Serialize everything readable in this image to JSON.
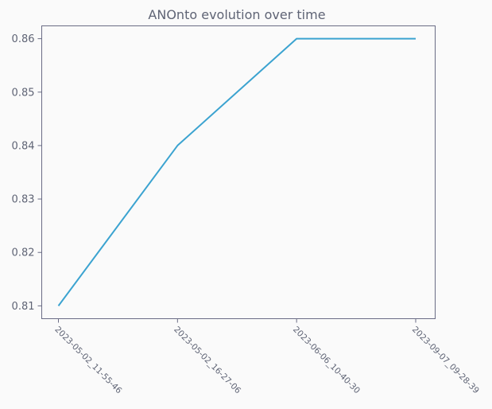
{
  "chart_data": {
    "type": "line",
    "title": "ANOnto evolution over time",
    "xlabel": "",
    "ylabel": "",
    "categories": [
      "2023-05-02_11-55-46",
      "2023-05-02_16-27-06",
      "2023-06-06_10-40-30",
      "2023-09-07_09-28-39"
    ],
    "series": [
      {
        "values": [
          0.81,
          0.84,
          0.86,
          0.86
        ],
        "color": "#3ba3d0"
      }
    ],
    "ylim": [
      0.8076,
      0.8624
    ],
    "yticks": [
      0.81,
      0.82,
      0.83,
      0.84,
      0.85,
      0.86
    ],
    "ytick_labels": [
      "0.81",
      "0.82",
      "0.83",
      "0.84",
      "0.85",
      "0.86"
    ],
    "grid": false,
    "legend": "none"
  }
}
